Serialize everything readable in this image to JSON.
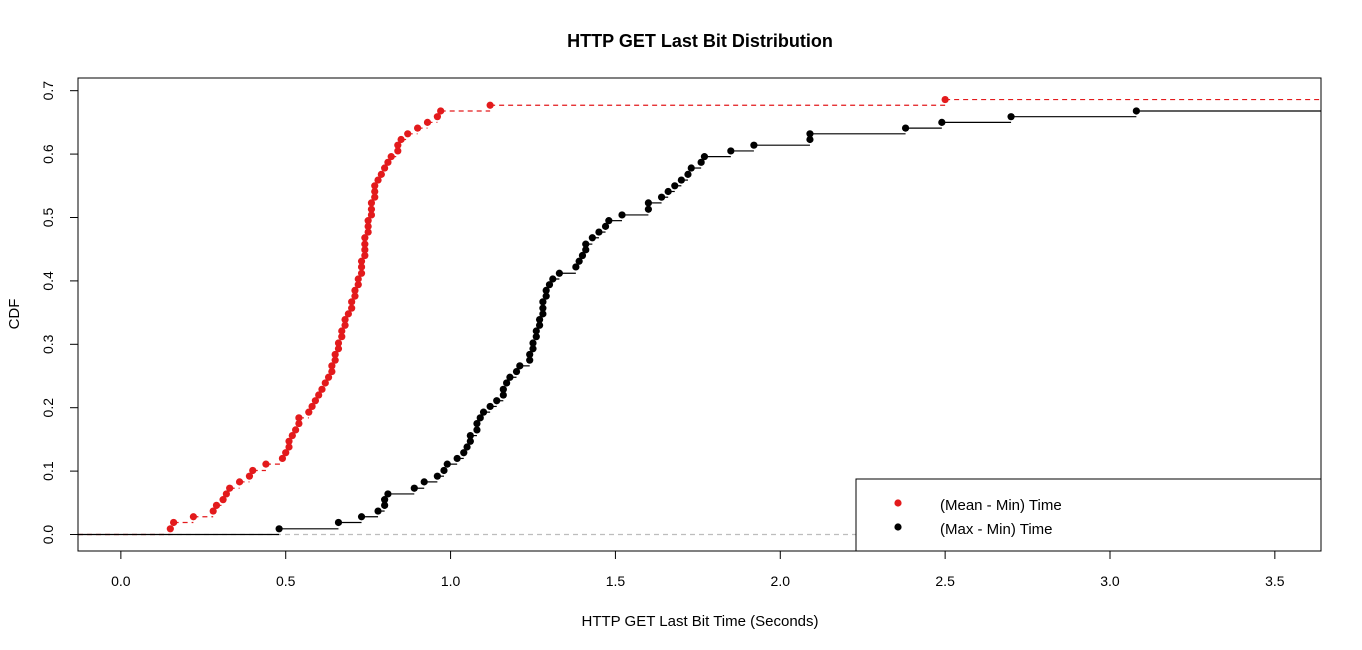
{
  "chart_data": {
    "type": "line",
    "step": true,
    "title": "HTTP GET Last Bit Distribution",
    "xlabel": "HTTP GET Last Bit Time (Seconds)",
    "ylabel": "CDF",
    "xlim": [
      -0.13,
      3.64
    ],
    "ylim": [
      -0.026,
      0.72
    ],
    "x_ticks": [
      "0.0",
      "0.5",
      "1.0",
      "1.5",
      "2.0",
      "2.5",
      "3.0",
      "3.5"
    ],
    "y_ticks": [
      "0.0",
      "0.1",
      "0.2",
      "0.3",
      "0.4",
      "0.5",
      "0.6",
      "0.7"
    ],
    "reference_line_y": 0,
    "legend_position": "bottom-right",
    "series": [
      {
        "name": "(Mean - Min) Time",
        "color": "#e31a1c",
        "line_style": "dashed",
        "points": [
          [
            0.15,
            0.009
          ],
          [
            0.16,
            0.019
          ],
          [
            0.22,
            0.028
          ],
          [
            0.28,
            0.037
          ],
          [
            0.29,
            0.046
          ],
          [
            0.31,
            0.055
          ],
          [
            0.32,
            0.064
          ],
          [
            0.33,
            0.073
          ],
          [
            0.36,
            0.083
          ],
          [
            0.39,
            0.092
          ],
          [
            0.4,
            0.101
          ],
          [
            0.44,
            0.111
          ],
          [
            0.49,
            0.12
          ],
          [
            0.5,
            0.129
          ],
          [
            0.51,
            0.138
          ],
          [
            0.51,
            0.147
          ],
          [
            0.52,
            0.156
          ],
          [
            0.53,
            0.165
          ],
          [
            0.54,
            0.175
          ],
          [
            0.54,
            0.184
          ],
          [
            0.57,
            0.193
          ],
          [
            0.58,
            0.202
          ],
          [
            0.59,
            0.211
          ],
          [
            0.6,
            0.22
          ],
          [
            0.61,
            0.229
          ],
          [
            0.62,
            0.239
          ],
          [
            0.63,
            0.248
          ],
          [
            0.64,
            0.257
          ],
          [
            0.64,
            0.266
          ],
          [
            0.65,
            0.275
          ],
          [
            0.65,
            0.284
          ],
          [
            0.66,
            0.293
          ],
          [
            0.66,
            0.302
          ],
          [
            0.67,
            0.312
          ],
          [
            0.67,
            0.321
          ],
          [
            0.68,
            0.33
          ],
          [
            0.68,
            0.339
          ],
          [
            0.69,
            0.348
          ],
          [
            0.7,
            0.357
          ],
          [
            0.7,
            0.367
          ],
          [
            0.71,
            0.376
          ],
          [
            0.71,
            0.385
          ],
          [
            0.72,
            0.394
          ],
          [
            0.72,
            0.403
          ],
          [
            0.73,
            0.412
          ],
          [
            0.73,
            0.422
          ],
          [
            0.73,
            0.431
          ],
          [
            0.74,
            0.44
          ],
          [
            0.74,
            0.449
          ],
          [
            0.74,
            0.458
          ],
          [
            0.74,
            0.468
          ],
          [
            0.75,
            0.477
          ],
          [
            0.75,
            0.486
          ],
          [
            0.75,
            0.495
          ],
          [
            0.76,
            0.504
          ],
          [
            0.76,
            0.513
          ],
          [
            0.76,
            0.523
          ],
          [
            0.77,
            0.532
          ],
          [
            0.77,
            0.541
          ],
          [
            0.77,
            0.55
          ],
          [
            0.78,
            0.559
          ],
          [
            0.79,
            0.568
          ],
          [
            0.8,
            0.578
          ],
          [
            0.81,
            0.587
          ],
          [
            0.82,
            0.596
          ],
          [
            0.84,
            0.605
          ],
          [
            0.84,
            0.614
          ],
          [
            0.85,
            0.623
          ],
          [
            0.87,
            0.632
          ],
          [
            0.9,
            0.641
          ],
          [
            0.93,
            0.65
          ],
          [
            0.96,
            0.659
          ],
          [
            0.97,
            0.668
          ],
          [
            1.12,
            0.677
          ],
          [
            2.5,
            0.686
          ]
        ]
      },
      {
        "name": "(Max - Min) Time",
        "color": "#000000",
        "line_style": "solid",
        "points": [
          [
            0.48,
            0.009
          ],
          [
            0.66,
            0.019
          ],
          [
            0.73,
            0.028
          ],
          [
            0.78,
            0.037
          ],
          [
            0.8,
            0.046
          ],
          [
            0.8,
            0.055
          ],
          [
            0.81,
            0.064
          ],
          [
            0.89,
            0.073
          ],
          [
            0.92,
            0.083
          ],
          [
            0.96,
            0.092
          ],
          [
            0.98,
            0.101
          ],
          [
            0.99,
            0.111
          ],
          [
            1.02,
            0.12
          ],
          [
            1.04,
            0.129
          ],
          [
            1.05,
            0.138
          ],
          [
            1.06,
            0.147
          ],
          [
            1.06,
            0.156
          ],
          [
            1.08,
            0.165
          ],
          [
            1.08,
            0.175
          ],
          [
            1.09,
            0.184
          ],
          [
            1.1,
            0.193
          ],
          [
            1.12,
            0.202
          ],
          [
            1.14,
            0.211
          ],
          [
            1.16,
            0.22
          ],
          [
            1.16,
            0.229
          ],
          [
            1.17,
            0.239
          ],
          [
            1.18,
            0.248
          ],
          [
            1.2,
            0.257
          ],
          [
            1.21,
            0.266
          ],
          [
            1.24,
            0.275
          ],
          [
            1.24,
            0.284
          ],
          [
            1.25,
            0.293
          ],
          [
            1.25,
            0.302
          ],
          [
            1.26,
            0.312
          ],
          [
            1.26,
            0.321
          ],
          [
            1.27,
            0.33
          ],
          [
            1.27,
            0.339
          ],
          [
            1.28,
            0.348
          ],
          [
            1.28,
            0.357
          ],
          [
            1.28,
            0.367
          ],
          [
            1.29,
            0.376
          ],
          [
            1.29,
            0.385
          ],
          [
            1.3,
            0.394
          ],
          [
            1.31,
            0.403
          ],
          [
            1.33,
            0.412
          ],
          [
            1.38,
            0.422
          ],
          [
            1.39,
            0.431
          ],
          [
            1.4,
            0.44
          ],
          [
            1.41,
            0.449
          ],
          [
            1.41,
            0.458
          ],
          [
            1.43,
            0.468
          ],
          [
            1.45,
            0.477
          ],
          [
            1.47,
            0.486
          ],
          [
            1.48,
            0.495
          ],
          [
            1.52,
            0.504
          ],
          [
            1.6,
            0.513
          ],
          [
            1.6,
            0.523
          ],
          [
            1.64,
            0.532
          ],
          [
            1.66,
            0.541
          ],
          [
            1.68,
            0.55
          ],
          [
            1.7,
            0.559
          ],
          [
            1.72,
            0.568
          ],
          [
            1.73,
            0.578
          ],
          [
            1.76,
            0.587
          ],
          [
            1.77,
            0.596
          ],
          [
            1.85,
            0.605
          ],
          [
            1.92,
            0.614
          ],
          [
            2.09,
            0.623
          ],
          [
            2.09,
            0.632
          ],
          [
            2.38,
            0.641
          ],
          [
            2.49,
            0.65
          ],
          [
            2.7,
            0.659
          ],
          [
            3.08,
            0.668
          ]
        ]
      }
    ]
  }
}
